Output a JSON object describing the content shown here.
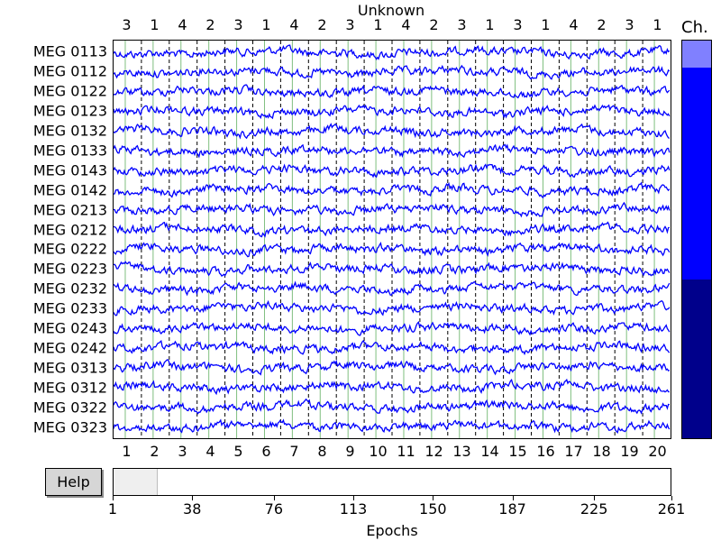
{
  "plot": {
    "title": "Unknown",
    "condition_labels": [
      "3",
      "1",
      "4",
      "2",
      "3",
      "1",
      "4",
      "2",
      "3",
      "1",
      "4",
      "2",
      "3",
      "1",
      "3",
      "1",
      "4",
      "2",
      "3",
      "1"
    ],
    "channels": [
      "MEG 0113",
      "MEG 0112",
      "MEG 0122",
      "MEG 0123",
      "MEG 0132",
      "MEG 0133",
      "MEG 0143",
      "MEG 0142",
      "MEG 0213",
      "MEG 0212",
      "MEG 0222",
      "MEG 0223",
      "MEG 0232",
      "MEG 0233",
      "MEG 0243",
      "MEG 0242",
      "MEG 0313",
      "MEG 0312",
      "MEG 0322",
      "MEG 0323"
    ],
    "epoch_ticks": [
      "1",
      "2",
      "3",
      "4",
      "5",
      "6",
      "7",
      "8",
      "9",
      "10",
      "11",
      "12",
      "13",
      "14",
      "15",
      "16",
      "17",
      "18",
      "19",
      "20"
    ],
    "trace_color": "#0000ff"
  },
  "channel_scroll": {
    "title": "Ch.",
    "segments": [
      {
        "color": "#8080ff",
        "fraction": 0.068
      },
      {
        "color": "#0000ff",
        "fraction": 0.532
      },
      {
        "color": "#00008b",
        "fraction": 0.4
      }
    ]
  },
  "help_button": {
    "label": "Help"
  },
  "epoch_scroll": {
    "ticks": [
      "1",
      "38",
      "76",
      "113",
      "150",
      "187",
      "225",
      "261"
    ],
    "visible_start_epoch": 1,
    "visible_end_epoch": 20,
    "total_epochs": 261,
    "xlabel": "Epochs"
  }
}
